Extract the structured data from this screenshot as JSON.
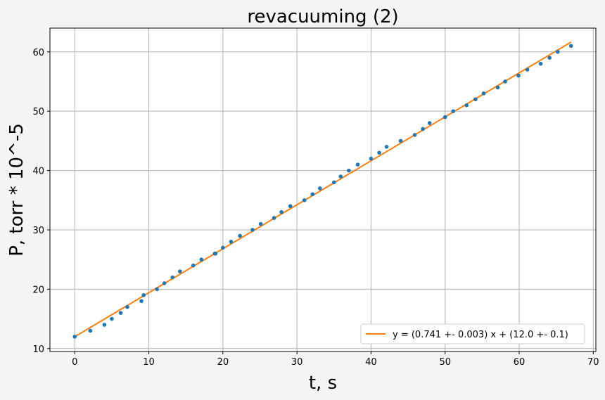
{
  "chart_data": {
    "type": "scatter",
    "title": "revacuuming (2)",
    "xlabel": "t, s",
    "ylabel": "P, torr * 10^-5",
    "xlim": [
      -3.35,
      70.35
    ],
    "ylim": [
      9.5,
      64.0
    ],
    "xticks": [
      0,
      10,
      20,
      30,
      40,
      50,
      60,
      70
    ],
    "yticks": [
      10,
      20,
      30,
      40,
      50,
      60
    ],
    "grid": true,
    "legend_position": "lower-right",
    "series": [
      {
        "kind": "points",
        "color": "#1f77b4",
        "x": [
          0,
          2.1,
          4.0,
          5.0,
          6.2,
          7.1,
          9.0,
          9.3,
          11.1,
          12.1,
          13.2,
          14.2,
          16.0,
          17.1,
          18.9,
          19.0,
          20.0,
          21.1,
          22.3,
          24.0,
          25.1,
          26.9,
          27.9,
          29.1,
          31.0,
          32.1,
          33.1,
          35.0,
          35.9,
          37.0,
          38.2,
          40.0,
          41.1,
          42.1,
          44.0,
          45.9,
          47.0,
          47.9,
          50.0,
          51.1,
          52.9,
          54.1,
          55.2,
          57.1,
          58.1,
          59.9,
          61.1,
          62.9,
          64.1,
          65.2,
          67.0
        ],
        "y": [
          12,
          13,
          14,
          15,
          16,
          17,
          18,
          19,
          20,
          21,
          22,
          23,
          24,
          25,
          26,
          26,
          27,
          28,
          29,
          30,
          31,
          32,
          33,
          34,
          35,
          36,
          37,
          38,
          39,
          40,
          41,
          42,
          43,
          44,
          45,
          46,
          47,
          48,
          49,
          50,
          51,
          52,
          53,
          54,
          55,
          56,
          57,
          58,
          59,
          60,
          61
        ]
      },
      {
        "kind": "line",
        "name": "y = (0.741 +- 0.003) x + (12.0 +- 0.1)",
        "color": "#ff7f0e",
        "slope": 0.741,
        "intercept": 12.0,
        "x_range": [
          0,
          67
        ]
      }
    ]
  }
}
